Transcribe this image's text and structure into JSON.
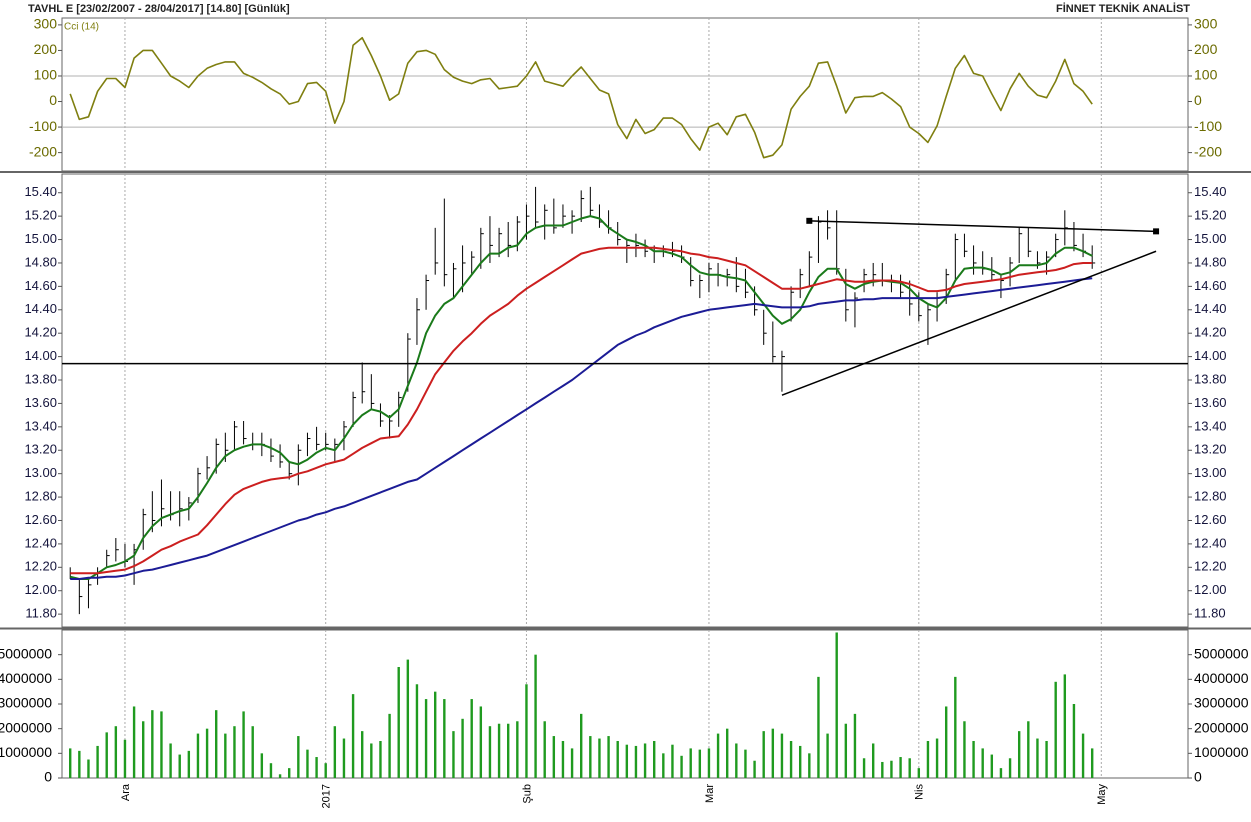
{
  "header": {
    "left": "TAVHL E  [23/02/2007 - 28/04/2017]  [14.80]  [Günlük]",
    "right": "FİNNET TEKNİK ANALİST"
  },
  "chart_data": [
    {
      "type": "line",
      "series": [
        {
          "name": "Cci (14)",
          "color": "#7f7f10",
          "values": [
            30,
            -70,
            -60,
            40,
            90,
            90,
            55,
            170,
            200,
            200,
            150,
            100,
            80,
            55,
            100,
            130,
            145,
            155,
            155,
            110,
            95,
            75,
            50,
            30,
            -10,
            0,
            70,
            75,
            40,
            -85,
            0,
            220,
            250,
            180,
            100,
            5,
            30,
            150,
            195,
            200,
            185,
            125,
            95,
            80,
            70,
            85,
            90,
            50,
            55,
            60,
            100,
            155,
            80,
            70,
            60,
            100,
            135,
            90,
            45,
            30,
            -90,
            -145,
            -70,
            -125,
            -110,
            -65,
            -65,
            -90,
            -145,
            -190,
            -100,
            -85,
            -130,
            -60,
            -50,
            -120,
            -220,
            -210,
            -170,
            -30,
            20,
            60,
            150,
            155,
            60,
            -45,
            15,
            20,
            20,
            35,
            10,
            -20,
            -100,
            -125,
            -160,
            -95,
            20,
            130,
            180,
            110,
            100,
            30,
            -35,
            50,
            110,
            60,
            25,
            15,
            80,
            165,
            70,
            40,
            -10
          ]
        }
      ],
      "ylim": [
        -272,
        327
      ],
      "yticks": [
        -200,
        -100,
        0,
        100,
        200,
        300
      ],
      "hgrid": [
        -100,
        100
      ]
    },
    {
      "type": "ohlc",
      "color": "#000000",
      "high": [
        12.2,
        12.1,
        12.1,
        12.2,
        12.35,
        12.45,
        12.4,
        12.4,
        12.7,
        12.85,
        12.95,
        12.85,
        12.85,
        12.8,
        13.05,
        13.15,
        13.3,
        13.35,
        13.45,
        13.45,
        13.35,
        13.35,
        13.3,
        13.25,
        13.1,
        13.25,
        13.35,
        13.4,
        13.35,
        13.3,
        13.45,
        13.7,
        13.95,
        13.85,
        13.6,
        13.5,
        13.7,
        14.2,
        14.5,
        14.7,
        15.1,
        15.35,
        14.8,
        14.95,
        14.9,
        15.1,
        15.2,
        15.1,
        15.15,
        15.2,
        15.3,
        15.45,
        15.3,
        15.35,
        15.3,
        15.25,
        15.42,
        15.45,
        15.3,
        15.25,
        15.15,
        15.0,
        15.05,
        15.0,
        14.95,
        14.95,
        14.98,
        14.95,
        14.85,
        14.7,
        14.8,
        14.8,
        14.75,
        14.85,
        14.75,
        14.6,
        14.4,
        14.3,
        14.05,
        14.6,
        14.75,
        14.9,
        15.2,
        15.25,
        15.25,
        14.75,
        14.55,
        14.75,
        14.8,
        14.8,
        14.7,
        14.7,
        14.65,
        14.55,
        14.45,
        14.55,
        14.75,
        15.05,
        15.05,
        14.95,
        14.9,
        14.85,
        14.7,
        14.85,
        15.1,
        15.1,
        14.9,
        14.9,
        15.05,
        15.25,
        15.15,
        15.05,
        14.95
      ],
      "low": [
        12.1,
        11.8,
        11.85,
        12.05,
        12.2,
        12.25,
        12.2,
        12.05,
        12.35,
        12.5,
        12.55,
        12.6,
        12.55,
        12.6,
        12.75,
        12.95,
        13.0,
        13.1,
        13.2,
        13.25,
        13.2,
        13.15,
        13.1,
        13.05,
        12.95,
        12.9,
        13.15,
        13.2,
        13.2,
        13.1,
        13.2,
        13.4,
        13.6,
        13.55,
        13.4,
        13.3,
        13.4,
        13.7,
        14.1,
        14.4,
        14.7,
        14.6,
        14.5,
        14.55,
        14.7,
        14.75,
        14.8,
        14.85,
        14.85,
        14.9,
        15.0,
        15.1,
        15.0,
        15.05,
        15.1,
        15.05,
        15.15,
        15.2,
        15.1,
        15.05,
        14.95,
        14.8,
        14.85,
        14.85,
        14.8,
        14.85,
        14.85,
        14.8,
        14.6,
        14.5,
        14.55,
        14.6,
        14.6,
        14.55,
        14.5,
        14.35,
        14.1,
        13.95,
        13.7,
        14.3,
        14.5,
        14.6,
        14.8,
        15.0,
        14.7,
        14.3,
        14.25,
        14.55,
        14.6,
        14.6,
        14.55,
        14.5,
        14.35,
        14.3,
        14.1,
        14.3,
        14.45,
        14.65,
        14.85,
        14.7,
        14.7,
        14.65,
        14.5,
        14.6,
        14.8,
        14.85,
        14.75,
        14.7,
        14.85,
        14.95,
        14.9,
        14.85,
        14.75
      ],
      "close": [
        12.15,
        11.95,
        12.05,
        12.15,
        12.3,
        12.35,
        12.25,
        12.35,
        12.65,
        12.6,
        12.7,
        12.65,
        12.7,
        12.75,
        13.0,
        13.05,
        13.25,
        13.2,
        13.4,
        13.3,
        13.25,
        13.25,
        13.15,
        13.1,
        13.0,
        13.2,
        13.3,
        13.25,
        13.25,
        13.25,
        13.4,
        13.65,
        13.7,
        13.6,
        13.45,
        13.45,
        13.65,
        14.15,
        14.4,
        14.65,
        14.8,
        14.7,
        14.75,
        14.8,
        14.85,
        15.05,
        14.95,
        15.05,
        14.95,
        15.15,
        15.2,
        15.15,
        15.25,
        15.1,
        15.2,
        15.2,
        15.35,
        15.25,
        15.15,
        15.1,
        15.0,
        14.95,
        14.95,
        14.9,
        14.9,
        14.9,
        14.9,
        14.85,
        14.65,
        14.65,
        14.75,
        14.7,
        14.7,
        14.6,
        14.55,
        14.4,
        14.2,
        14.0,
        14.0,
        14.55,
        14.7,
        14.85,
        15.15,
        15.1,
        14.75,
        14.4,
        14.5,
        14.7,
        14.7,
        14.65,
        14.65,
        14.55,
        14.45,
        14.35,
        14.4,
        14.5,
        14.7,
        15.0,
        14.9,
        14.8,
        14.75,
        14.7,
        14.65,
        14.8,
        15.05,
        14.9,
        14.8,
        14.85,
        15.0,
        15.1,
        14.95,
        14.9,
        14.8
      ],
      "series": [
        {
          "color": "#1a7a1a",
          "values": [
            12.12,
            12.1,
            12.1,
            12.15,
            12.2,
            12.22,
            12.25,
            12.3,
            12.45,
            12.55,
            12.62,
            12.65,
            12.68,
            12.7,
            12.8,
            12.92,
            13.05,
            13.15,
            13.2,
            13.23,
            13.25,
            13.25,
            13.22,
            13.18,
            13.1,
            13.08,
            13.12,
            13.18,
            13.22,
            13.2,
            13.3,
            13.42,
            13.5,
            13.55,
            13.53,
            13.48,
            13.55,
            13.75,
            13.95,
            14.2,
            14.35,
            14.45,
            14.5,
            14.6,
            14.7,
            14.8,
            14.88,
            14.88,
            14.93,
            14.95,
            15.05,
            15.1,
            15.12,
            15.12,
            15.12,
            15.15,
            15.18,
            15.2,
            15.18,
            15.1,
            15.05,
            15.0,
            14.98,
            14.95,
            14.9,
            14.9,
            14.88,
            14.85,
            14.78,
            14.72,
            14.7,
            14.7,
            14.68,
            14.67,
            14.65,
            14.55,
            14.45,
            14.35,
            14.28,
            14.32,
            14.4,
            14.55,
            14.68,
            14.75,
            14.75,
            14.62,
            14.58,
            14.62,
            14.64,
            14.65,
            14.64,
            14.63,
            14.58,
            14.5,
            14.45,
            14.42,
            14.5,
            14.65,
            14.75,
            14.76,
            14.76,
            14.74,
            14.7,
            14.72,
            14.78,
            14.78,
            14.78,
            14.8,
            14.88,
            14.93,
            14.93,
            14.9,
            14.86
          ]
        },
        {
          "color": "#cc1f1f",
          "values": [
            12.15,
            12.15,
            12.15,
            12.15,
            12.16,
            12.17,
            12.18,
            12.21,
            12.25,
            12.3,
            12.35,
            12.38,
            12.42,
            12.45,
            12.48,
            12.56,
            12.65,
            12.74,
            12.82,
            12.87,
            12.9,
            12.93,
            12.95,
            12.96,
            12.97,
            13.0,
            13.02,
            13.05,
            13.08,
            13.1,
            13.12,
            13.17,
            13.22,
            13.26,
            13.3,
            13.31,
            13.32,
            13.42,
            13.55,
            13.7,
            13.85,
            13.95,
            14.05,
            14.13,
            14.2,
            14.28,
            14.35,
            14.4,
            14.45,
            14.52,
            14.58,
            14.63,
            14.68,
            14.73,
            14.78,
            14.83,
            14.88,
            14.9,
            14.92,
            14.93,
            14.93,
            14.93,
            14.93,
            14.93,
            14.93,
            14.92,
            14.91,
            14.9,
            14.88,
            14.87,
            14.85,
            14.84,
            14.82,
            14.8,
            14.78,
            14.73,
            14.68,
            14.63,
            14.58,
            14.58,
            14.58,
            14.6,
            14.62,
            14.64,
            14.66,
            14.65,
            14.64,
            14.64,
            14.65,
            14.65,
            14.65,
            14.64,
            14.62,
            14.59,
            14.56,
            14.56,
            14.57,
            14.6,
            14.62,
            14.63,
            14.64,
            14.65,
            14.66,
            14.68,
            14.7,
            14.71,
            14.72,
            14.73,
            14.74,
            14.76,
            14.79,
            14.8,
            14.8
          ]
        },
        {
          "color": "#1c1c96",
          "values": [
            12.1,
            12.1,
            12.11,
            12.11,
            12.12,
            12.12,
            12.13,
            12.15,
            12.17,
            12.18,
            12.2,
            12.22,
            12.24,
            12.26,
            12.28,
            12.3,
            12.33,
            12.36,
            12.39,
            12.42,
            12.45,
            12.48,
            12.51,
            12.54,
            12.57,
            12.6,
            12.62,
            12.65,
            12.67,
            12.7,
            12.72,
            12.75,
            12.78,
            12.81,
            12.84,
            12.87,
            12.9,
            12.93,
            12.95,
            13.0,
            13.05,
            13.1,
            13.15,
            13.2,
            13.25,
            13.3,
            13.35,
            13.4,
            13.45,
            13.5,
            13.55,
            13.6,
            13.65,
            13.7,
            13.75,
            13.8,
            13.86,
            13.92,
            13.98,
            14.04,
            14.1,
            14.14,
            14.18,
            14.21,
            14.25,
            14.28,
            14.31,
            14.34,
            14.36,
            14.38,
            14.4,
            14.41,
            14.42,
            14.43,
            14.44,
            14.45,
            14.44,
            14.43,
            14.42,
            14.42,
            14.42,
            14.43,
            14.45,
            14.46,
            14.47,
            14.48,
            14.48,
            14.49,
            14.49,
            14.5,
            14.5,
            14.5,
            14.5,
            14.5,
            14.5,
            14.5,
            14.51,
            14.52,
            14.53,
            14.54,
            14.55,
            14.56,
            14.57,
            14.58,
            14.59,
            14.6,
            14.61,
            14.62,
            14.63,
            14.64,
            14.65,
            14.66,
            14.67
          ]
        }
      ],
      "hline": 13.94,
      "trendlines": [
        {
          "x": [
            81,
            119
          ],
          "y": [
            15.16,
            15.07
          ],
          "end_markers": true
        },
        {
          "x": [
            78,
            119
          ],
          "y": [
            13.67,
            14.9
          ],
          "end_markers": false
        }
      ],
      "ylim": [
        11.69,
        15.56
      ],
      "yticks": [
        {
          "value": 11.8,
          "label": "11.80"
        },
        {
          "value": 12,
          "label": "12.00"
        },
        {
          "value": 12.2,
          "label": "12.20"
        },
        {
          "value": 12.4,
          "label": "12.40"
        },
        {
          "value": 12.6,
          "label": "12.60"
        },
        {
          "value": 12.8,
          "label": "12.80"
        },
        {
          "value": 13,
          "label": "13.00"
        },
        {
          "value": 13.2,
          "label": "13.20"
        },
        {
          "value": 13.4,
          "label": "13.40"
        },
        {
          "value": 13.6,
          "label": "13.60"
        },
        {
          "value": 13.8,
          "label": "13.80"
        },
        {
          "value": 14,
          "label": "14.00"
        },
        {
          "value": 14.2,
          "label": "14.20"
        },
        {
          "value": 14.4,
          "label": "14.40"
        },
        {
          "value": 14.6,
          "label": "14.60"
        },
        {
          "value": 14.8,
          "label": "14.80"
        },
        {
          "value": 15,
          "label": "15.00"
        },
        {
          "value": 15.2,
          "label": "15.20"
        },
        {
          "value": 15.4,
          "label": "15.40"
        }
      ]
    },
    {
      "type": "bar",
      "color": "#1f9a1f",
      "values": [
        1200000,
        1100000,
        750000,
        1300000,
        1850000,
        2100000,
        1550000,
        2900000,
        2300000,
        2750000,
        2700000,
        1400000,
        950000,
        1100000,
        1800000,
        2000000,
        2750000,
        1800000,
        2100000,
        2700000,
        2100000,
        1000000,
        600000,
        150000,
        400000,
        1700000,
        1150000,
        850000,
        600000,
        2100000,
        1600000,
        3400000,
        1900000,
        1400000,
        1500000,
        2600000,
        4500000,
        4800000,
        3800000,
        3200000,
        3500000,
        3200000,
        1900000,
        2400000,
        3200000,
        2900000,
        2100000,
        2200000,
        2200000,
        2300000,
        3800000,
        5000000,
        2300000,
        1700000,
        1500000,
        1200000,
        2600000,
        1700000,
        1600000,
        1700000,
        1500000,
        1350000,
        1300000,
        1400000,
        1500000,
        1000000,
        1350000,
        900000,
        1200000,
        1150000,
        1200000,
        1800000,
        2000000,
        1400000,
        1150000,
        700000,
        1900000,
        2000000,
        1800000,
        1500000,
        1300000,
        1000000,
        4100000,
        1800000,
        5900000,
        2200000,
        2600000,
        800000,
        1400000,
        650000,
        700000,
        850000,
        800000,
        400000,
        1500000,
        1600000,
        2900000,
        4100000,
        2300000,
        1500000,
        1200000,
        950000,
        400000,
        800000,
        1900000,
        2300000,
        1600000,
        1500000,
        3900000,
        4200000,
        3000000,
        1800000,
        1200000
      ],
      "ylim": [
        0,
        6000000
      ],
      "yticks": [
        0,
        1000000,
        2000000,
        3000000,
        4000000,
        5000000
      ],
      "xlim": [
        -0.9,
        122.5
      ],
      "xticks": [
        {
          "value": 6,
          "label": "Ara"
        },
        {
          "value": 28,
          "label": "2017"
        },
        {
          "value": 50,
          "label": "Şub"
        },
        {
          "value": 70,
          "label": "Mar"
        },
        {
          "value": 93,
          "label": "Nis"
        },
        {
          "value": 113,
          "label": "May"
        }
      ]
    }
  ]
}
